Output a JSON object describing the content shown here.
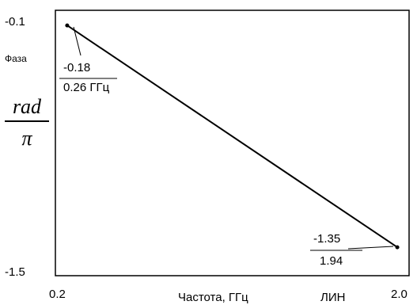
{
  "y_axis": {
    "top_tick": "-0.1",
    "bottom_tick": "-1.5",
    "quantity_label": "Фаза",
    "unit_numerator": "rad",
    "unit_denominator": "π"
  },
  "x_axis": {
    "left_tick": "0.2",
    "right_tick": "2.0",
    "label": "Частота, ГГц",
    "scale_label": "ЛИН"
  },
  "markers": [
    {
      "value": "-0.18",
      "freq": "0.26 ГГц"
    },
    {
      "value": "-1.35",
      "freq": "1.94"
    }
  ],
  "chart_data": {
    "type": "line",
    "x": [
      0.26,
      1.94
    ],
    "series": [
      {
        "values": [
          -0.18,
          -1.35
        ]
      }
    ],
    "xlim": [
      0.2,
      2.0
    ],
    "ylim": [
      -1.5,
      -0.1
    ],
    "xlabel": "Частота, ГГц",
    "ylabel": "Фаза rad/π",
    "grid": false,
    "color": "#000000"
  }
}
